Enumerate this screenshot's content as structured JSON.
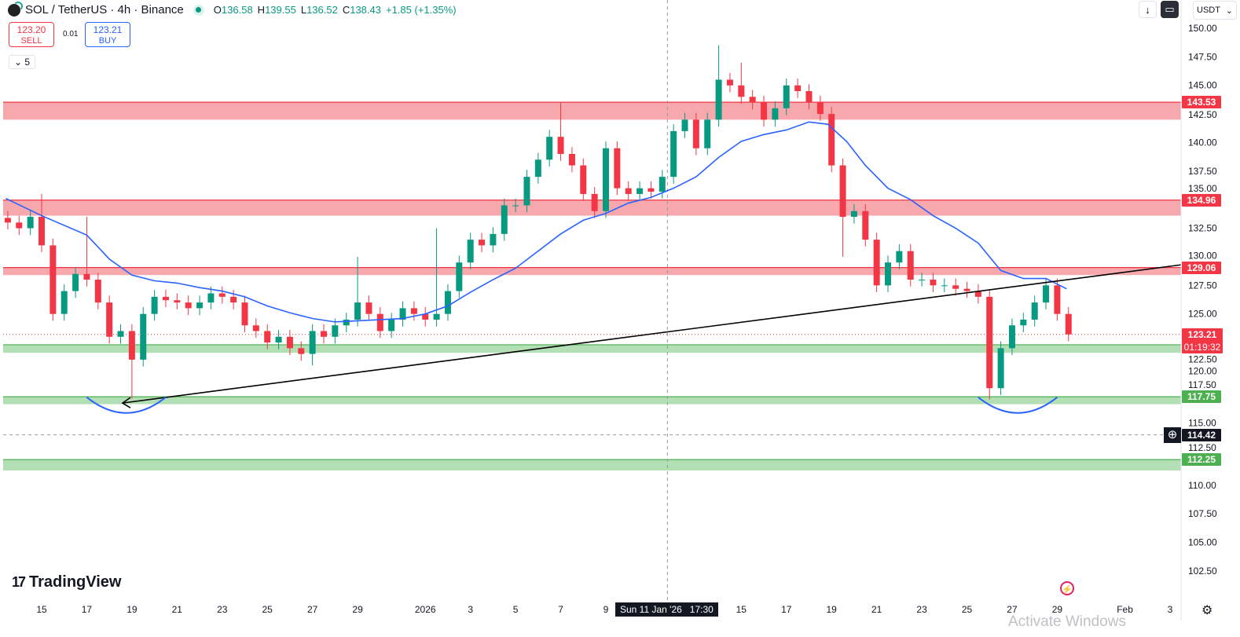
{
  "header": {
    "symbol": "SOL / TetherUS · 4h · Binance",
    "o_label": "O",
    "o": "136.58",
    "h_label": "H",
    "h": "139.55",
    "l_label": "L",
    "l": "136.52",
    "c_label": "C",
    "c": "138.43",
    "change": "+1.85 (+1.35%)"
  },
  "trade": {
    "sell_price": "123.20",
    "sell_label": "SELL",
    "spread": "0.01",
    "buy_price": "123.21",
    "buy_label": "BUY"
  },
  "indicator_toggle": {
    "label": "5"
  },
  "toolbar": {
    "currency": "USDT"
  },
  "branding": {
    "logo_text": "TradingView"
  },
  "watermark": "Activate Windows",
  "crosshair": {
    "time_label": "Sun 11 Jan '26   17:30",
    "price_label": "114.42"
  },
  "colors": {
    "up": "#089981",
    "down": "#f23645",
    "ma": "#2962ff",
    "resistance": "#f23645",
    "support": "#4caf50"
  },
  "chart_data": {
    "type": "candlestick",
    "symbol": "SOL/USDT",
    "interval": "4h",
    "ylim": [
      101.5,
      151.5
    ],
    "y_ticks": [
      150,
      147.5,
      145,
      142.5,
      140,
      137.5,
      135,
      132.5,
      130,
      127.5,
      125,
      122.5,
      120,
      117.5,
      115,
      112.5,
      110,
      107.5,
      105,
      102.5
    ],
    "y_tick_labels": [
      "150.00",
      "147.50",
      "145.00",
      "142.50",
      "140.00",
      "137.50",
      "135.00",
      "132.50",
      "130.00",
      "127.50",
      "125.00",
      "122.50",
      "120.00",
      "117.50",
      "115.00",
      "112.50",
      "110.00",
      "107.50",
      "105.00",
      "102.50"
    ],
    "x_ticks": [
      {
        "date": "2025-12-15",
        "label": "15"
      },
      {
        "date": "2025-12-17",
        "label": "17"
      },
      {
        "date": "2025-12-19",
        "label": "19"
      },
      {
        "date": "2025-12-21",
        "label": "21"
      },
      {
        "date": "2025-12-23",
        "label": "23"
      },
      {
        "date": "2025-12-25",
        "label": "25"
      },
      {
        "date": "2025-12-27",
        "label": "27"
      },
      {
        "date": "2025-12-29",
        "label": "29"
      },
      {
        "date": "2026-01-01",
        "label": "2026"
      },
      {
        "date": "2026-01-03",
        "label": "3"
      },
      {
        "date": "2026-01-05",
        "label": "5"
      },
      {
        "date": "2026-01-07",
        "label": "7"
      },
      {
        "date": "2026-01-09",
        "label": "9"
      },
      {
        "date": "2026-01-15",
        "label": "15"
      },
      {
        "date": "2026-01-17",
        "label": "17"
      },
      {
        "date": "2026-01-19",
        "label": "19"
      },
      {
        "date": "2026-01-21",
        "label": "21"
      },
      {
        "date": "2026-01-23",
        "label": "23"
      },
      {
        "date": "2026-01-25",
        "label": "25"
      },
      {
        "date": "2026-01-27",
        "label": "27"
      },
      {
        "date": "2026-01-29",
        "label": "29"
      },
      {
        "date": "2026-02-01",
        "label": "Feb"
      },
      {
        "date": "2026-02-03",
        "label": "3"
      }
    ],
    "closes": [
      [
        "2025-12-13T12:00",
        133
      ],
      [
        "2025-12-14T00:00",
        132.5
      ],
      [
        "2025-12-14T12:00",
        133.5
      ],
      [
        "2025-12-15T00:00",
        131
      ],
      [
        "2025-12-15T12:00",
        125
      ],
      [
        "2025-12-16T00:00",
        127
      ],
      [
        "2025-12-16T12:00",
        128.5
      ],
      [
        "2025-12-17T00:00",
        128
      ],
      [
        "2025-12-17T12:00",
        126
      ],
      [
        "2025-12-18T00:00",
        123
      ],
      [
        "2025-12-18T12:00",
        123.5
      ],
      [
        "2025-12-19T00:00",
        121
      ],
      [
        "2025-12-19T12:00",
        125
      ],
      [
        "2025-12-20T00:00",
        126.5
      ],
      [
        "2025-12-20T12:00",
        126.2
      ],
      [
        "2025-12-21T00:00",
        126
      ],
      [
        "2025-12-21T12:00",
        125.5
      ],
      [
        "2025-12-22T00:00",
        126
      ],
      [
        "2025-12-22T12:00",
        126.8
      ],
      [
        "2025-12-23T00:00",
        126.5
      ],
      [
        "2025-12-23T12:00",
        126
      ],
      [
        "2025-12-24T00:00",
        124
      ],
      [
        "2025-12-24T12:00",
        123.5
      ],
      [
        "2025-12-25T00:00",
        122.5
      ],
      [
        "2025-12-25T12:00",
        123
      ],
      [
        "2025-12-26T00:00",
        122
      ],
      [
        "2025-12-26T12:00",
        121.5
      ],
      [
        "2025-12-27T00:00",
        123.5
      ],
      [
        "2025-12-27T12:00",
        123
      ],
      [
        "2025-12-28T00:00",
        124
      ],
      [
        "2025-12-28T12:00",
        124.5
      ],
      [
        "2025-12-29T00:00",
        126
      ],
      [
        "2025-12-29T12:00",
        125
      ],
      [
        "2025-12-30T00:00",
        123.5
      ],
      [
        "2025-12-30T12:00",
        124.5
      ],
      [
        "2025-12-31T00:00",
        125.5
      ],
      [
        "2025-12-31T12:00",
        125
      ],
      [
        "2026-01-01T00:00",
        124.5
      ],
      [
        "2026-01-01T12:00",
        125
      ],
      [
        "2026-01-02T00:00",
        127
      ],
      [
        "2026-01-02T12:00",
        129.5
      ],
      [
        "2026-01-03T00:00",
        131.5
      ],
      [
        "2026-01-03T12:00",
        131
      ],
      [
        "2026-01-04T00:00",
        132
      ],
      [
        "2026-01-04T12:00",
        134.5
      ],
      [
        "2026-01-05T00:00",
        134.5
      ],
      [
        "2026-01-05T12:00",
        137
      ],
      [
        "2026-01-06T00:00",
        138.5
      ],
      [
        "2026-01-06T12:00",
        140.5
      ],
      [
        "2026-01-07T00:00",
        139
      ],
      [
        "2026-01-07T12:00",
        138
      ],
      [
        "2026-01-08T00:00",
        135.5
      ],
      [
        "2026-01-08T12:00",
        134
      ],
      [
        "2026-01-09T00:00",
        139.5
      ],
      [
        "2026-01-09T12:00",
        136
      ],
      [
        "2026-01-10T00:00",
        135.5
      ],
      [
        "2026-01-10T12:00",
        136
      ],
      [
        "2026-01-11T00:00",
        135.7
      ],
      [
        "2026-01-11T12:00",
        137
      ],
      [
        "2026-01-12T00:00",
        141
      ],
      [
        "2026-01-12T12:00",
        142
      ],
      [
        "2026-01-13T00:00",
        139.5
      ],
      [
        "2026-01-13T12:00",
        142
      ],
      [
        "2026-01-14T00:00",
        145.5
      ],
      [
        "2026-01-14T12:00",
        145
      ],
      [
        "2026-01-15T00:00",
        144
      ],
      [
        "2026-01-15T12:00",
        143.5
      ],
      [
        "2026-01-16T00:00",
        142
      ],
      [
        "2026-01-16T12:00",
        143
      ],
      [
        "2026-01-17T00:00",
        145
      ],
      [
        "2026-01-17T12:00",
        144.5
      ],
      [
        "2026-01-18T00:00",
        143.5
      ],
      [
        "2026-01-18T12:00",
        142.5
      ],
      [
        "2026-01-19T00:00",
        138
      ],
      [
        "2026-01-19T12:00",
        133.5
      ],
      [
        "2026-01-20T00:00",
        134
      ],
      [
        "2026-01-20T12:00",
        131.5
      ],
      [
        "2026-01-21T00:00",
        127.5
      ],
      [
        "2026-01-21T12:00",
        129.5
      ],
      [
        "2026-01-22T00:00",
        130.5
      ],
      [
        "2026-01-22T12:00",
        128
      ],
      [
        "2026-01-23T00:00",
        128
      ],
      [
        "2026-01-23T12:00",
        127.5
      ],
      [
        "2026-01-24T00:00",
        127.5
      ],
      [
        "2026-01-24T12:00",
        127.2
      ],
      [
        "2026-01-25T00:00",
        127
      ],
      [
        "2026-01-25T12:00",
        126.5
      ],
      [
        "2026-01-26T00:00",
        118.5
      ],
      [
        "2026-01-26T12:00",
        122
      ],
      [
        "2026-01-27T00:00",
        124
      ],
      [
        "2026-01-27T12:00",
        124.5
      ],
      [
        "2026-01-28T00:00",
        126
      ],
      [
        "2026-01-28T12:00",
        127.5
      ],
      [
        "2026-01-29T00:00",
        125
      ],
      [
        "2026-01-29T12:00",
        123.21
      ]
    ],
    "wick_extremes": [
      {
        "date": "2025-12-15T00:00",
        "high": 135.5
      },
      {
        "date": "2025-12-17T00:00",
        "high": 133.5
      },
      {
        "date": "2025-12-19T00:00",
        "low": 117.6
      },
      {
        "date": "2025-12-29T00:00",
        "high": 130
      },
      {
        "date": "2025-12-27T00:00",
        "low": 120.5
      },
      {
        "date": "2026-01-01T12:00",
        "high": 132.5
      },
      {
        "date": "2026-01-07T00:00",
        "high": 143.5
      },
      {
        "date": "2026-01-14T00:00",
        "high": 148.5
      },
      {
        "date": "2026-01-15T00:00",
        "high": 147
      },
      {
        "date": "2026-01-19T12:00",
        "low": 130
      },
      {
        "date": "2026-01-26T00:00",
        "low": 117.5
      }
    ],
    "moving_average": [
      [
        "2025-12-13T10:00",
        135.1
      ],
      [
        "2025-12-15T00:00",
        133.6
      ],
      [
        "2025-12-17T00:00",
        131.9
      ],
      [
        "2025-12-18T00:00",
        129.8
      ],
      [
        "2025-12-19T00:00",
        128.4
      ],
      [
        "2025-12-20T00:00",
        127.9
      ],
      [
        "2025-12-21T00:00",
        127.7
      ],
      [
        "2025-12-22T00:00",
        127.3
      ],
      [
        "2025-12-23T00:00",
        127
      ],
      [
        "2025-12-24T00:00",
        126.5
      ],
      [
        "2025-12-25T00:00",
        125.7
      ],
      [
        "2025-12-26T00:00",
        125.1
      ],
      [
        "2025-12-27T00:00",
        124.6
      ],
      [
        "2025-12-28T00:00",
        124.3
      ],
      [
        "2025-12-29T00:00",
        124.4
      ],
      [
        "2025-12-31T00:00",
        124.6
      ],
      [
        "2026-01-01T00:00",
        125
      ],
      [
        "2026-01-02T00:00",
        125.7
      ],
      [
        "2026-01-03T00:00",
        126.9
      ],
      [
        "2026-01-04T00:00",
        128
      ],
      [
        "2026-01-05T00:00",
        129
      ],
      [
        "2026-01-06T00:00",
        130.5
      ],
      [
        "2026-01-07T00:00",
        132
      ],
      [
        "2026-01-08T00:00",
        133.2
      ],
      [
        "2026-01-09T00:00",
        133.8
      ],
      [
        "2026-01-10T00:00",
        134.7
      ],
      [
        "2026-01-11T00:00",
        135.2
      ],
      [
        "2026-01-12T00:00",
        136
      ],
      [
        "2026-01-13T00:00",
        137
      ],
      [
        "2026-01-14T00:00",
        138.7
      ],
      [
        "2026-01-15T00:00",
        140.1
      ],
      [
        "2026-01-16T00:00",
        140.7
      ],
      [
        "2026-01-17T00:00",
        141.1
      ],
      [
        "2026-01-18T00:00",
        141.8
      ],
      [
        "2026-01-18T20:00",
        141.6
      ],
      [
        "2026-01-19T16:00",
        140.1
      ],
      [
        "2026-01-20T12:00",
        138
      ],
      [
        "2026-01-21T12:00",
        136
      ],
      [
        "2026-01-22T12:00",
        135
      ],
      [
        "2026-01-23T12:00",
        133.6
      ],
      [
        "2026-01-24T12:00",
        132.5
      ],
      [
        "2026-01-25T12:00",
        131.2
      ],
      [
        "2026-01-26T12:00",
        128.8
      ],
      [
        "2026-01-27T12:00",
        128.1
      ],
      [
        "2026-01-28T12:00",
        128.1
      ],
      [
        "2026-01-29T10:00",
        127.2
      ]
    ],
    "trendline": [
      [
        "2025-12-18T14:00",
        117.2
      ],
      [
        "2026-02-03T12:00",
        129.3
      ]
    ],
    "zones": [
      {
        "kind": "resistance",
        "label": "143.53",
        "top": 143.53,
        "bottom": 142
      },
      {
        "kind": "resistance",
        "label": "134.96",
        "top": 134.96,
        "bottom": 133.6
      },
      {
        "kind": "resistance",
        "label": "129.06",
        "top": 129.06,
        "bottom": 128.4
      },
      {
        "kind": "support",
        "label": "",
        "top": 122.3,
        "bottom": 121.6
      },
      {
        "kind": "support",
        "label": "117.75",
        "top": 117.75,
        "bottom": 117.1
      },
      {
        "kind": "support",
        "label": "112.25",
        "top": 112.25,
        "bottom": 111.3
      }
    ],
    "arcs": [
      [
        "2025-12-17T00:00",
        "2025-12-20T12:00"
      ],
      [
        "2026-01-25T12:00",
        "2026-01-29T00:00"
      ]
    ],
    "last_price": {
      "label": "123.21",
      "countdown": "01:19:32",
      "value": 123.21
    },
    "crosshair": {
      "date": "2026-01-11T17:30",
      "value": 114.42
    }
  }
}
